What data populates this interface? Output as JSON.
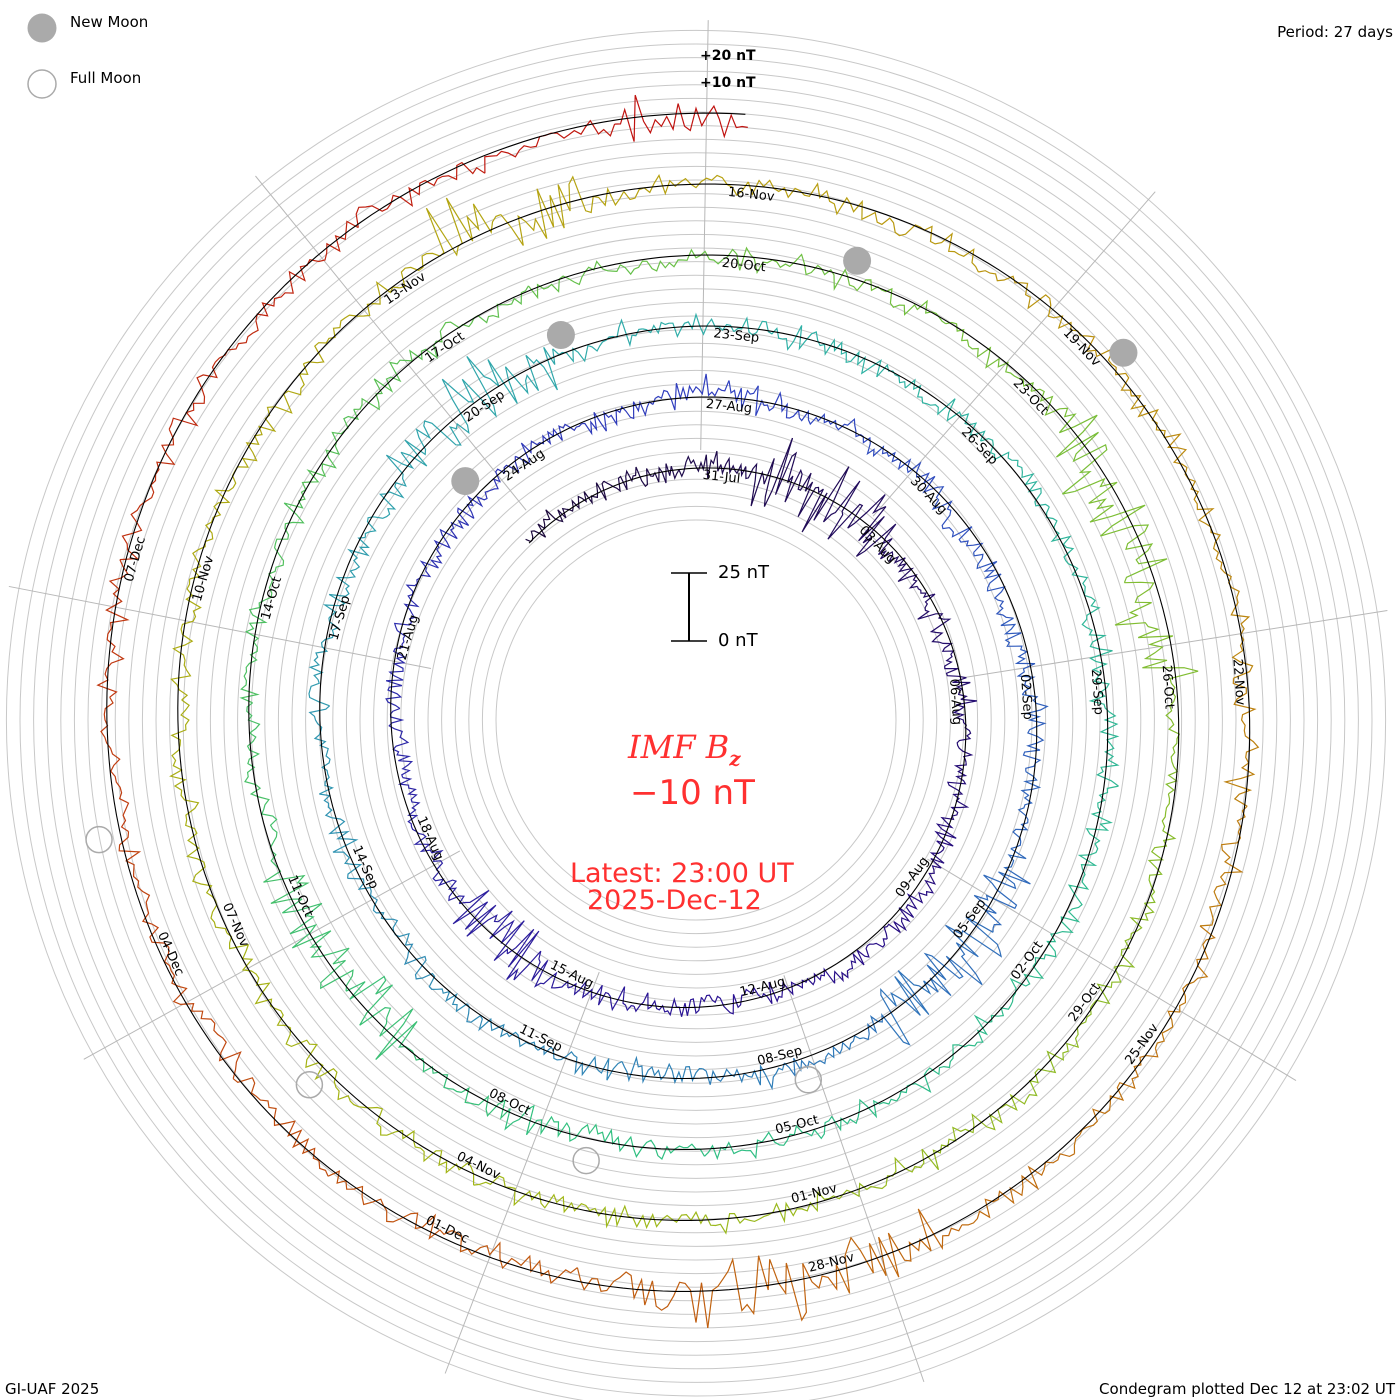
{
  "legend": {
    "new_moon_label": "New Moon",
    "full_moon_label": "Full Moon",
    "new_moon_color": "#aaaaaa",
    "full_moon_color": "#aaaaaa"
  },
  "period_label": "Period: 27 days",
  "footer_left": "GI-UAF 2025",
  "footer_right": "Condegram plotted Dec 12 at 23:02 UT",
  "scale": {
    "top_label": "25 nT",
    "bottom_label": "0 nT",
    "plus20_label": "+20 nT",
    "plus10_label": "+10 nT"
  },
  "center": {
    "title_main": "IMF B",
    "title_sub": "z",
    "value": "−10 nT",
    "latest_line": "Latest: 23:00 UT",
    "date_line": "2025-Dec-12",
    "color": "#ff3030"
  },
  "chart_data": {
    "type": "line",
    "subtype": "spiral condegram",
    "title": "IMF Bz",
    "units": "nT",
    "period_days": 27,
    "start": "2025-07-27T07:00",
    "end": "2025-12-12T23:00",
    "reference_date": "2025-07-31",
    "scale_bar_nT": 25,
    "latest_value_nT": -10,
    "date_labels": [
      "31-Jul",
      "03-Aug",
      "06-Aug",
      "09-Aug",
      "12-Aug",
      "15-Aug",
      "18-Aug",
      "21-Aug",
      "24-Aug",
      "27-Aug",
      "30-Aug",
      "02-Sep",
      "05-Sep",
      "08-Sep",
      "11-Sep",
      "14-Sep",
      "17-Sep",
      "20-Sep",
      "23-Sep",
      "26-Sep",
      "29-Sep",
      "02-Oct",
      "05-Oct",
      "08-Oct",
      "11-Oct",
      "14-Oct",
      "17-Oct",
      "20-Oct",
      "23-Oct",
      "26-Oct",
      "29-Oct",
      "01-Nov",
      "04-Nov",
      "07-Nov",
      "10-Nov",
      "13-Nov",
      "16-Nov",
      "19-Nov",
      "22-Nov",
      "25-Nov",
      "28-Nov",
      "01-Dec",
      "04-Dec",
      "07-Dec"
    ],
    "new_moon_days_since_reference": [
      23.25,
      52.1,
      82.0,
      111.25
    ],
    "full_moon_days_since_reference": [
      38.75,
      68.1,
      97.55,
      126.95
    ],
    "color_stops": [
      {
        "day": -4,
        "color": "#1a0838"
      },
      {
        "day": 12,
        "color": "#2a1090"
      },
      {
        "day": 27,
        "color": "#3040c0"
      },
      {
        "day": 40,
        "color": "#3080b8"
      },
      {
        "day": 54,
        "color": "#30b0a8"
      },
      {
        "day": 68,
        "color": "#30c080"
      },
      {
        "day": 82,
        "color": "#70c040"
      },
      {
        "day": 95,
        "color": "#a0b818"
      },
      {
        "day": 108,
        "color": "#b8a010"
      },
      {
        "day": 118,
        "color": "#c07010"
      },
      {
        "day": 127,
        "color": "#c04010"
      },
      {
        "day": 135,
        "color": "#c01010"
      }
    ]
  }
}
